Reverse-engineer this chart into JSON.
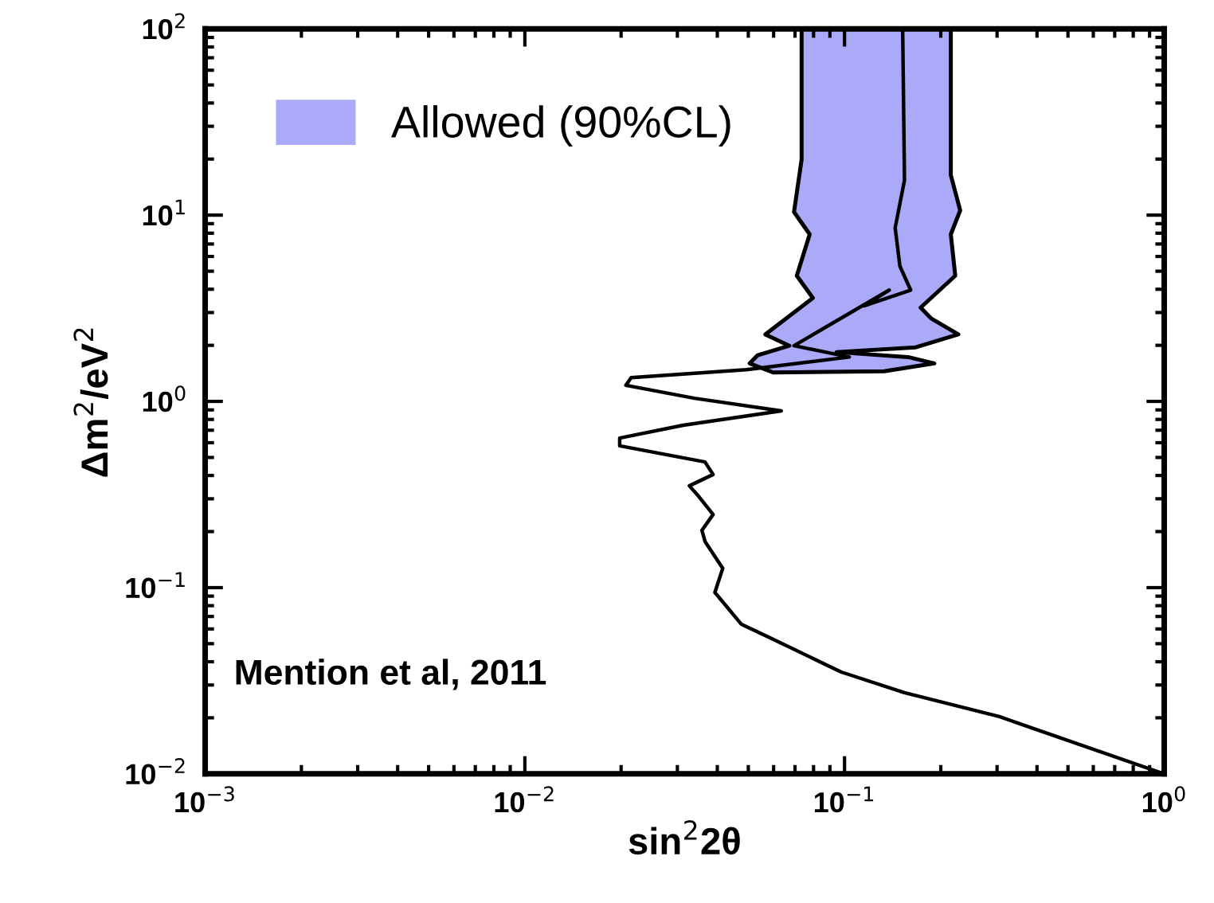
{
  "chart_data": {
    "type": "line",
    "xlabel": "sin$^{2}$2θ",
    "ylabel": "Δm$^{2}$/eV$^{2}$",
    "log": "xy",
    "xlim": [
      0.001,
      1
    ],
    "ylim": [
      0.01,
      100
    ],
    "xticks": [
      {
        "value": 0.001,
        "label": "10$^{−3}$"
      },
      {
        "value": 0.01,
        "label": "10$^{−2}$"
      },
      {
        "value": 0.1,
        "label": "10$^{−1}$"
      },
      {
        "value": 1,
        "label": "10$^{0}$"
      }
    ],
    "yticks": [
      {
        "value": 0.01,
        "label": "10$^{−2}$"
      },
      {
        "value": 0.1,
        "label": "10$^{−1}$"
      },
      {
        "value": 1,
        "label": "10$^{0}$"
      },
      {
        "value": 10,
        "label": "10$^{1}$"
      },
      {
        "value": 100,
        "label": "10$^{2}$"
      }
    ],
    "grid": false,
    "legend": "top left",
    "marker": "none",
    "line_style": "solid",
    "series": [
      {
        "type": "area",
        "name": "Allowed (90%CL)",
        "color": "#aaaaf8",
        "x": [
          0.0734,
          0.0734,
          0.0695,
          0.0778,
          0.0709,
          0.0796,
          0.0565,
          0.0672,
          0.0535,
          0.0505,
          0.0598,
          0.133,
          0.191,
          0.158,
          0.0944,
          0.167,
          0.227,
          0.187,
          0.173,
          0.222,
          0.215,
          0.23,
          0.215,
          0.215
        ],
        "values": [
          100,
          19.9,
          10.4,
          7.89,
          4.73,
          3.59,
          2.29,
          1.99,
          1.77,
          1.6,
          1.43,
          1.45,
          1.6,
          1.73,
          1.84,
          1.95,
          2.29,
          2.78,
          3.19,
          4.73,
          7.89,
          10.6,
          16.4,
          100
        ]
      },
      {
        "color": "#000000",
        "x": [
          1.0,
          0.305,
          0.154,
          0.0977,
          0.0578,
          0.0476,
          0.0393,
          0.0416,
          0.0366,
          0.0358,
          0.0388,
          0.0351,
          0.0327,
          0.0388,
          0.0366,
          0.0198,
          0.0198,
          0.0313,
          0.0634,
          0.0339,
          0.0207,
          0.0215,
          0.0493,
          0.1035,
          0.0695,
          0.138,
          0.115,
          0.161,
          0.149,
          0.144,
          0.154,
          0.152
        ],
        "values": [
          0.01,
          0.0203,
          0.0273,
          0.0352,
          0.0543,
          0.0635,
          0.0942,
          0.127,
          0.177,
          0.203,
          0.247,
          0.307,
          0.352,
          0.405,
          0.473,
          0.577,
          0.635,
          0.745,
          0.889,
          1.04,
          1.22,
          1.34,
          1.48,
          1.73,
          1.99,
          3.96,
          3.26,
          3.96,
          5.32,
          8.55,
          15.4,
          100
        ]
      }
    ],
    "annotations": [
      "Mention et al, 2011"
    ]
  }
}
